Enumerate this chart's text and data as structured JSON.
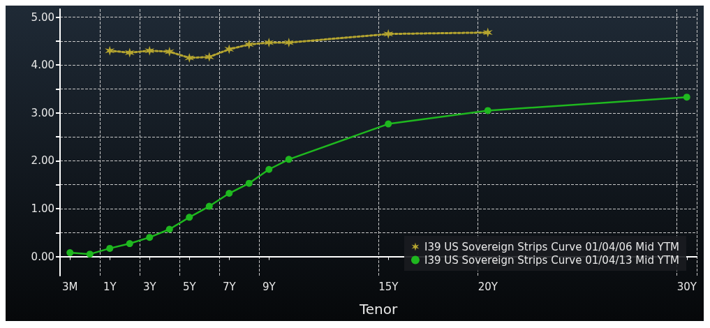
{
  "chart_data": {
    "type": "line",
    "xlabel": "Tenor",
    "categories": [
      "3M",
      null,
      "1Y",
      null,
      "3Y",
      null,
      "5Y",
      null,
      "7Y",
      null,
      "9Y",
      null,
      null,
      null,
      null,
      null,
      "15Y",
      null,
      null,
      null,
      null,
      "20Y",
      null,
      null,
      null,
      null,
      null,
      null,
      null,
      null,
      null,
      "30Y"
    ],
    "ylim": [
      -0.4,
      5.17
    ],
    "yticks": [
      {
        "value": 0,
        "label": "0.00"
      },
      {
        "value": 0.5,
        "label": null
      },
      {
        "value": 1,
        "label": "1.00"
      },
      {
        "value": 1.5,
        "label": null
      },
      {
        "value": 2,
        "label": "2.00"
      },
      {
        "value": 2.5,
        "label": null
      },
      {
        "value": 3,
        "label": "3.00"
      },
      {
        "value": 3.5,
        "label": null
      },
      {
        "value": 4,
        "label": "4.00"
      },
      {
        "value": 4.5,
        "label": null
      },
      {
        "value": 5,
        "label": "5.00"
      }
    ],
    "grid": true,
    "legend": "bottom right",
    "series": [
      {
        "name": "I39 US Sovereign Strips Curve 01/04/06 Mid YTM",
        "color": "#b5a530",
        "marker": "cross",
        "line_style": "dotted",
        "values": [
          null,
          null,
          4.3,
          4.26,
          4.3,
          4.28,
          4.15,
          4.17,
          4.33,
          4.43,
          4.47,
          4.47,
          null,
          null,
          null,
          null,
          4.65,
          null,
          null,
          null,
          null,
          4.68,
          null,
          null,
          null,
          null,
          null,
          null,
          null,
          null,
          null,
          null
        ]
      },
      {
        "name": "I39 US Sovereign Strips Curve 01/04/13 Mid YTM",
        "color": "#1fb81f",
        "marker": "circle",
        "line_style": "solid",
        "values": [
          0.08,
          0.05,
          0.17,
          0.27,
          0.4,
          0.57,
          0.82,
          1.05,
          1.32,
          1.53,
          1.82,
          2.03,
          null,
          null,
          null,
          null,
          2.77,
          null,
          null,
          null,
          null,
          3.05,
          null,
          null,
          null,
          null,
          null,
          null,
          null,
          null,
          null,
          3.33
        ]
      }
    ]
  }
}
